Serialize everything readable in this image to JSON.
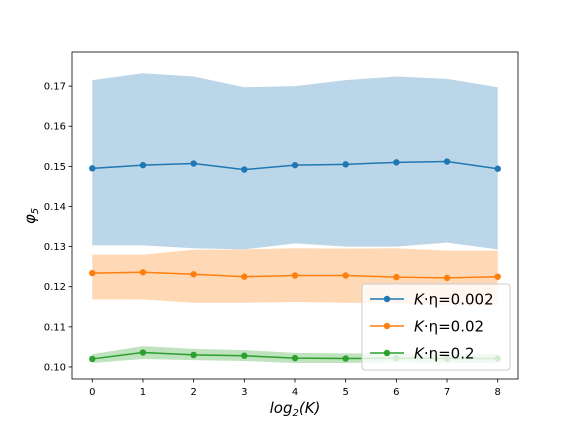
{
  "chart_data": {
    "type": "line",
    "x": [
      0,
      1,
      2,
      3,
      4,
      5,
      6,
      7,
      8
    ],
    "xlabel": "log2(K)",
    "ylabel": "φ5",
    "xlim": [
      -0.4,
      8.4
    ],
    "ylim": [
      0.097,
      0.1785
    ],
    "xticks": [
      0,
      1,
      2,
      3,
      4,
      5,
      6,
      7,
      8
    ],
    "yticks": [
      0.1,
      0.11,
      0.12,
      0.13,
      0.14,
      0.15,
      0.16,
      0.17
    ],
    "ytick_labels": [
      "0.10",
      "0.11",
      "0.12",
      "0.13",
      "0.14",
      "0.15",
      "0.16",
      "0.17"
    ],
    "grid": false,
    "legend_position": "lower-right",
    "series": [
      {
        "name": "K·η=0.002",
        "legend_prefix": "K",
        "legend_suffix": "·η=0.002",
        "color": "#1f77b4",
        "values": [
          0.1495,
          0.1503,
          0.1507,
          0.1492,
          0.1503,
          0.1505,
          0.151,
          0.1512,
          0.1494
        ],
        "upper": [
          0.1715,
          0.1732,
          0.1724,
          0.1697,
          0.17,
          0.1715,
          0.1724,
          0.1718,
          0.1697
        ],
        "lower": [
          0.1303,
          0.1303,
          0.1296,
          0.1293,
          0.1308,
          0.13,
          0.13,
          0.131,
          0.1293
        ]
      },
      {
        "name": "K·η=0.02",
        "legend_prefix": "K",
        "legend_suffix": "·η=0.02",
        "color": "#ff7f0e",
        "values": [
          0.1234,
          0.1236,
          0.1231,
          0.1225,
          0.1228,
          0.1228,
          0.1224,
          0.1222,
          0.1225
        ],
        "upper": [
          0.128,
          0.128,
          0.1292,
          0.1293,
          0.1296,
          0.1295,
          0.1296,
          0.129,
          0.129
        ],
        "lower": [
          0.1168,
          0.1168,
          0.116,
          0.116,
          0.1162,
          0.116,
          0.1158,
          0.1154,
          0.1153
        ]
      },
      {
        "name": "K·η=0.2",
        "legend_prefix": "K",
        "legend_suffix": "·η=0.2",
        "color": "#2ca02c",
        "values": [
          0.102,
          0.1036,
          0.103,
          0.1028,
          0.1022,
          0.1021,
          0.1022,
          0.1021,
          0.1021
        ],
        "upper": [
          0.1032,
          0.1052,
          0.1045,
          0.1042,
          0.1035,
          0.1034,
          0.1034,
          0.1032,
          0.1032
        ],
        "lower": [
          0.101,
          0.102,
          0.1017,
          0.1015,
          0.101,
          0.101,
          0.1012,
          0.101,
          0.101
        ]
      }
    ]
  }
}
